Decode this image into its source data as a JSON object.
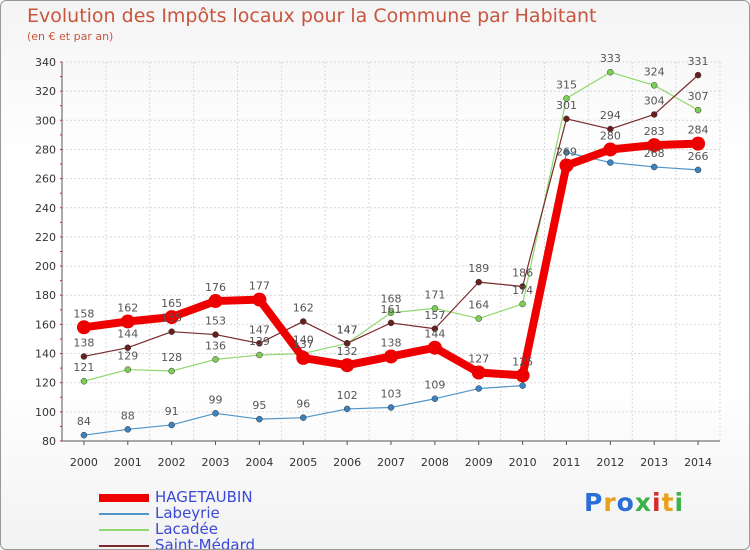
{
  "title": "Evolution des Impôts locaux pour la Commune par Habitant",
  "subtitle": "(en € et par an)",
  "logo": {
    "chars": [
      "P",
      "r",
      "o",
      "x",
      "i",
      "t",
      "i"
    ],
    "colors": [
      "#2b6fd6",
      "#e8a21a",
      "#2b6fd6",
      "#3bb34a",
      "#d62b2b",
      "#e8a21a",
      "#3bb34a"
    ]
  },
  "chart_data": {
    "type": "line",
    "title": "Evolution des Impôts locaux pour la Commune par Habitant",
    "subtitle": "(en € et par an)",
    "x": [
      "2000",
      "2001",
      "2002",
      "2003",
      "2004",
      "2005",
      "2006",
      "2007",
      "2008",
      "2009",
      "2010",
      "2011",
      "2012",
      "2013",
      "2014"
    ],
    "ylim": [
      80,
      340
    ],
    "yticks": [
      80,
      100,
      120,
      140,
      160,
      180,
      200,
      220,
      240,
      260,
      280,
      300,
      320,
      340
    ],
    "grid": true,
    "legend_position": "bottom-left",
    "series": [
      {
        "name": "Labeyrie",
        "color": "#4f95c9",
        "point_color": "#3a82c0",
        "width": 1.2,
        "values": [
          84,
          88,
          91,
          99,
          95,
          96,
          102,
          103,
          109,
          116,
          118,
          278,
          271,
          268,
          266
        ],
        "labels": [
          84,
          88,
          91,
          99,
          95,
          96,
          102,
          103,
          109,
          null,
          null,
          null,
          null,
          268,
          266
        ]
      },
      {
        "name": "Lacadée",
        "color": "#8fd96e",
        "point_color": "#7ccf54",
        "width": 1.2,
        "values": [
          121,
          129,
          128,
          136,
          139,
          140,
          147,
          168,
          171,
          164,
          174,
          315,
          333,
          324,
          307
        ],
        "labels": [
          121,
          129,
          128,
          136,
          139,
          140,
          147,
          168,
          171,
          164,
          174,
          315,
          333,
          324,
          307
        ]
      },
      {
        "name": "Saint-Médard",
        "color": "#7a2a2a",
        "point_color": "#6a1f1f",
        "width": 1.2,
        "values": [
          138,
          144,
          155,
          153,
          147,
          162,
          147,
          161,
          157,
          189,
          186,
          301,
          294,
          304,
          331
        ],
        "labels": [
          138,
          144,
          155,
          153,
          147,
          162,
          147,
          161,
          157,
          189,
          186,
          301,
          294,
          304,
          331
        ]
      },
      {
        "name": "HAGETAUBIN",
        "color": "#ee0000",
        "point_color": "#ee0000",
        "width": 8,
        "values": [
          158,
          162,
          165,
          176,
          177,
          137,
          132,
          138,
          144,
          127,
          125,
          269,
          280,
          283,
          284
        ],
        "labels": [
          158,
          162,
          165,
          176,
          177,
          137,
          132,
          138,
          144,
          127,
          125,
          269,
          280,
          283,
          284
        ]
      }
    ]
  },
  "legend": [
    {
      "name": "HAGETAUBIN",
      "color": "#ee0000",
      "thickness": 8
    },
    {
      "name": "Labeyrie",
      "color": "#4f95c9",
      "thickness": 2
    },
    {
      "name": "Lacadée",
      "color": "#8fd96e",
      "thickness": 2
    },
    {
      "name": "Saint-Médard",
      "color": "#7a2a2a",
      "thickness": 2
    }
  ]
}
